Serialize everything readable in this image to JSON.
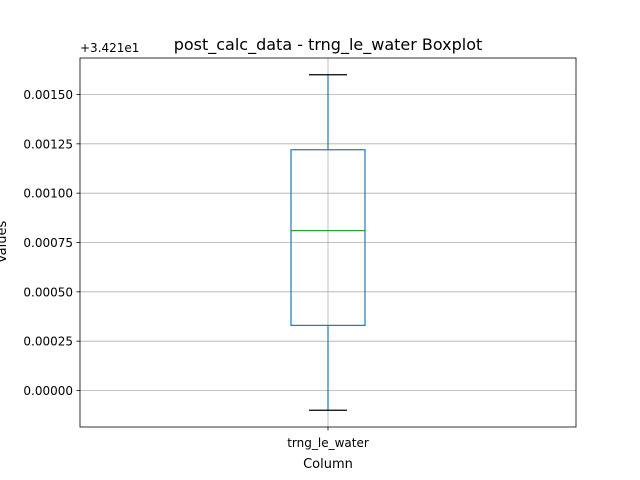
{
  "chart_data": {
    "type": "boxplot",
    "title": "post_calc_data - trng_le_water Boxplot",
    "xlabel": "Column",
    "ylabel": "Values",
    "offset_label": "+3.421e1",
    "categories": [
      "trng_le_water"
    ],
    "boxes": [
      {
        "category": "trng_le_water",
        "whisker_low": -0.0001,
        "q1": 0.00033,
        "median": 0.00081,
        "q3": 0.00122,
        "whisker_high": 0.0016
      }
    ],
    "ylim": [
      -0.000185,
      0.001685
    ],
    "yticks": [
      0.0,
      0.00025,
      0.0005,
      0.00075,
      0.001,
      0.00125,
      0.0015
    ],
    "ytick_labels": [
      "0.00000",
      "0.00025",
      "0.00050",
      "0.00075",
      "0.00100",
      "0.00125",
      "0.00150"
    ],
    "grid": true,
    "colors": {
      "box": "#1f77b4",
      "median": "#2ca02c",
      "caps": "#000000",
      "grid": "#b0b0b0"
    }
  }
}
